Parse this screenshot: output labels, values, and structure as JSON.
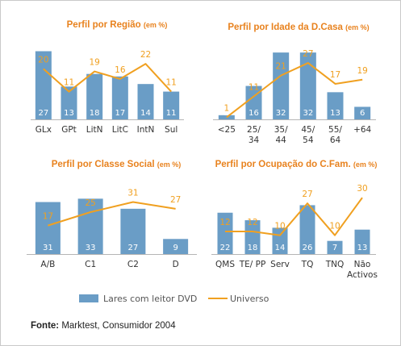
{
  "colors": {
    "bar": "#6a9dc6",
    "line": "#f0a020",
    "title": "#e8821e"
  },
  "legend": {
    "bar_label": "Lares com leitor DVD",
    "line_label": "Universo"
  },
  "source": {
    "label": "Fonte:",
    "text": " Marktest, Consumidor 2004"
  },
  "chart_data": [
    {
      "type": "bar",
      "title": "Perfil por Região",
      "title_unit": "(em %)",
      "categories": [
        [
          "GLx"
        ],
        [
          "GPt"
        ],
        [
          "LitN"
        ],
        [
          "LitC"
        ],
        [
          "IntN"
        ],
        [
          "Sul"
        ]
      ],
      "series": [
        {
          "name": "Lares com leitor DVD",
          "type": "bar",
          "values": [
            27,
            13,
            18,
            17,
            14,
            11
          ]
        },
        {
          "name": "Universo",
          "type": "line",
          "values": [
            20,
            11,
            19,
            16,
            22,
            11
          ]
        }
      ],
      "ylim": [
        0,
        30
      ]
    },
    {
      "type": "bar",
      "title": "Perfil por Idade da D.Casa",
      "title_unit": "(em %)",
      "categories": [
        [
          "<25"
        ],
        [
          "25/",
          "34"
        ],
        [
          "35/",
          "44"
        ],
        [
          "45/",
          "54"
        ],
        [
          "55/",
          "64"
        ],
        [
          "+64"
        ]
      ],
      "series": [
        {
          "name": "Lares com leitor DVD",
          "type": "bar",
          "values": [
            2,
            16,
            32,
            32,
            13,
            6
          ]
        },
        {
          "name": "Universo",
          "type": "line",
          "values": [
            1,
            11,
            21,
            27,
            17,
            19
          ]
        }
      ],
      "ylim": [
        0,
        34
      ]
    },
    {
      "type": "bar",
      "title": "Perfil por Classe Social",
      "title_unit": "(em %)",
      "categories": [
        [
          "A/B"
        ],
        [
          "C1"
        ],
        [
          "C2"
        ],
        [
          "D"
        ]
      ],
      "series": [
        {
          "name": "Lares com leitor DVD",
          "type": "bar",
          "values": [
            31,
            33,
            27,
            9
          ]
        },
        {
          "name": "Universo",
          "type": "line",
          "values": [
            17,
            25,
            31,
            27
          ]
        }
      ],
      "ylim": [
        0,
        50
      ]
    },
    {
      "type": "bar",
      "title": "Perfil por Ocupação do C.Fam.",
      "title_unit": "(em %)",
      "categories": [
        [
          "QMS"
        ],
        [
          "TE/ PP"
        ],
        [
          "Serv"
        ],
        [
          "TQ"
        ],
        [
          "TNQ"
        ],
        [
          "Não",
          "Activos"
        ]
      ],
      "series": [
        {
          "name": "Lares com leitor DVD",
          "type": "bar",
          "values": [
            22,
            18,
            14,
            26,
            7,
            13
          ]
        },
        {
          "name": "Universo",
          "type": "line",
          "values": [
            12,
            12,
            10,
            27,
            10,
            30
          ]
        }
      ],
      "ylim": [
        0,
        34
      ]
    }
  ]
}
